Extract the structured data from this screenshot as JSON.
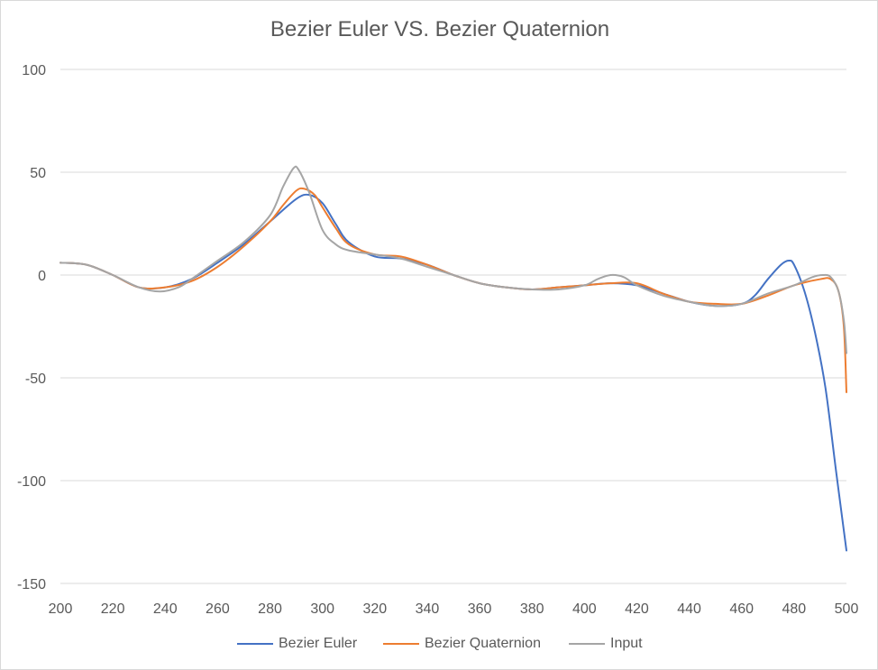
{
  "chart_data": {
    "type": "line",
    "title": "Bezier Euler VS. Bezier Quaternion",
    "xlim": [
      200,
      500
    ],
    "ylim": [
      -150,
      100
    ],
    "x_ticks": [
      "200",
      "220",
      "240",
      "260",
      "280",
      "300",
      "320",
      "340",
      "360",
      "380",
      "400",
      "420",
      "440",
      "460",
      "480",
      "500"
    ],
    "y_ticks": [
      "100",
      "50",
      "0",
      "-50",
      "-100",
      "-150"
    ],
    "grid": "horizontal",
    "legend_position": "bottom",
    "series": [
      {
        "name": "Bezier Euler",
        "color": "#4472c4",
        "points": [
          [
            200,
            6
          ],
          [
            210,
            5
          ],
          [
            220,
            0
          ],
          [
            230,
            -6
          ],
          [
            240,
            -6
          ],
          [
            250,
            -2
          ],
          [
            260,
            6
          ],
          [
            270,
            15
          ],
          [
            280,
            26
          ],
          [
            290,
            37
          ],
          [
            295,
            39
          ],
          [
            300,
            35
          ],
          [
            305,
            25
          ],
          [
            310,
            16
          ],
          [
            320,
            9
          ],
          [
            330,
            8
          ],
          [
            340,
            5
          ],
          [
            350,
            0
          ],
          [
            360,
            -4
          ],
          [
            370,
            -6
          ],
          [
            380,
            -7
          ],
          [
            390,
            -6
          ],
          [
            400,
            -5
          ],
          [
            410,
            -4
          ],
          [
            420,
            -5
          ],
          [
            430,
            -9
          ],
          [
            440,
            -13
          ],
          [
            450,
            -15
          ],
          [
            460,
            -14
          ],
          [
            465,
            -10
          ],
          [
            470,
            -2
          ],
          [
            475,
            5
          ],
          [
            478,
            7
          ],
          [
            480,
            5
          ],
          [
            484,
            -8
          ],
          [
            488,
            -28
          ],
          [
            492,
            -55
          ],
          [
            496,
            -95
          ],
          [
            500,
            -134
          ]
        ]
      },
      {
        "name": "Bezier Quaternion",
        "color": "#ed7d31",
        "points": [
          [
            200,
            6
          ],
          [
            210,
            5
          ],
          [
            220,
            0
          ],
          [
            230,
            -6
          ],
          [
            240,
            -6
          ],
          [
            250,
            -3
          ],
          [
            260,
            4
          ],
          [
            270,
            14
          ],
          [
            280,
            26
          ],
          [
            285,
            34
          ],
          [
            290,
            41
          ],
          [
            293,
            42
          ],
          [
            297,
            39
          ],
          [
            300,
            33
          ],
          [
            305,
            23
          ],
          [
            310,
            15
          ],
          [
            320,
            10
          ],
          [
            330,
            9
          ],
          [
            340,
            5
          ],
          [
            350,
            0
          ],
          [
            360,
            -4
          ],
          [
            370,
            -6
          ],
          [
            380,
            -7
          ],
          [
            390,
            -6
          ],
          [
            400,
            -5
          ],
          [
            410,
            -4
          ],
          [
            420,
            -4
          ],
          [
            430,
            -9
          ],
          [
            440,
            -13
          ],
          [
            450,
            -14
          ],
          [
            460,
            -14
          ],
          [
            470,
            -10
          ],
          [
            480,
            -5
          ],
          [
            490,
            -2
          ],
          [
            494,
            -2
          ],
          [
            497,
            -8
          ],
          [
            499,
            -25
          ],
          [
            500,
            -57
          ]
        ]
      },
      {
        "name": "Input",
        "color": "#a5a5a5",
        "points": [
          [
            200,
            6
          ],
          [
            210,
            5
          ],
          [
            220,
            0
          ],
          [
            230,
            -6
          ],
          [
            238,
            -8
          ],
          [
            245,
            -6
          ],
          [
            250,
            -2
          ],
          [
            260,
            7
          ],
          [
            270,
            16
          ],
          [
            280,
            29
          ],
          [
            285,
            43
          ],
          [
            289,
            52
          ],
          [
            291,
            51
          ],
          [
            295,
            40
          ],
          [
            300,
            22
          ],
          [
            305,
            15
          ],
          [
            310,
            12
          ],
          [
            320,
            10
          ],
          [
            330,
            8
          ],
          [
            340,
            4
          ],
          [
            350,
            0
          ],
          [
            360,
            -4
          ],
          [
            370,
            -6
          ],
          [
            380,
            -7
          ],
          [
            390,
            -7
          ],
          [
            400,
            -5
          ],
          [
            405,
            -2
          ],
          [
            410,
            0
          ],
          [
            415,
            -1
          ],
          [
            420,
            -5
          ],
          [
            430,
            -10
          ],
          [
            440,
            -13
          ],
          [
            450,
            -15
          ],
          [
            460,
            -14
          ],
          [
            470,
            -9
          ],
          [
            480,
            -5
          ],
          [
            487,
            -1
          ],
          [
            491,
            0
          ],
          [
            494,
            -1
          ],
          [
            497,
            -8
          ],
          [
            499,
            -22
          ],
          [
            500,
            -38
          ]
        ]
      }
    ]
  }
}
